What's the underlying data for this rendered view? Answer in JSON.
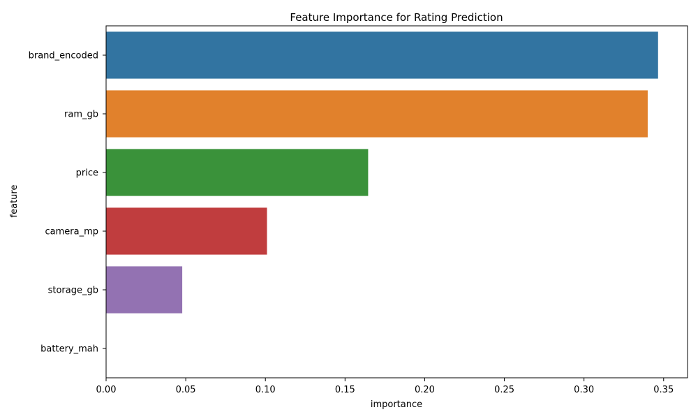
{
  "chart_data": {
    "type": "bar",
    "orientation": "horizontal",
    "title": "Feature Importance for Rating Prediction",
    "xlabel": "importance",
    "ylabel": "feature",
    "categories": [
      "brand_encoded",
      "ram_gb",
      "price",
      "camera_mp",
      "storage_gb",
      "battery_mah"
    ],
    "values": [
      0.3465,
      0.34,
      0.1645,
      0.101,
      0.0478,
      0.0
    ],
    "colors": [
      "#3274a1",
      "#e1812c",
      "#3a923a",
      "#c03d3e",
      "#9372b2",
      "#845b53"
    ],
    "xlim": [
      0,
      0.365
    ],
    "xticks": [
      0.0,
      0.05,
      0.1,
      0.15,
      0.2,
      0.25,
      0.3,
      0.35
    ],
    "xtick_labels": [
      "0.00",
      "0.05",
      "0.10",
      "0.15",
      "0.20",
      "0.25",
      "0.30",
      "0.35"
    ],
    "grid": false,
    "legend": "none"
  }
}
